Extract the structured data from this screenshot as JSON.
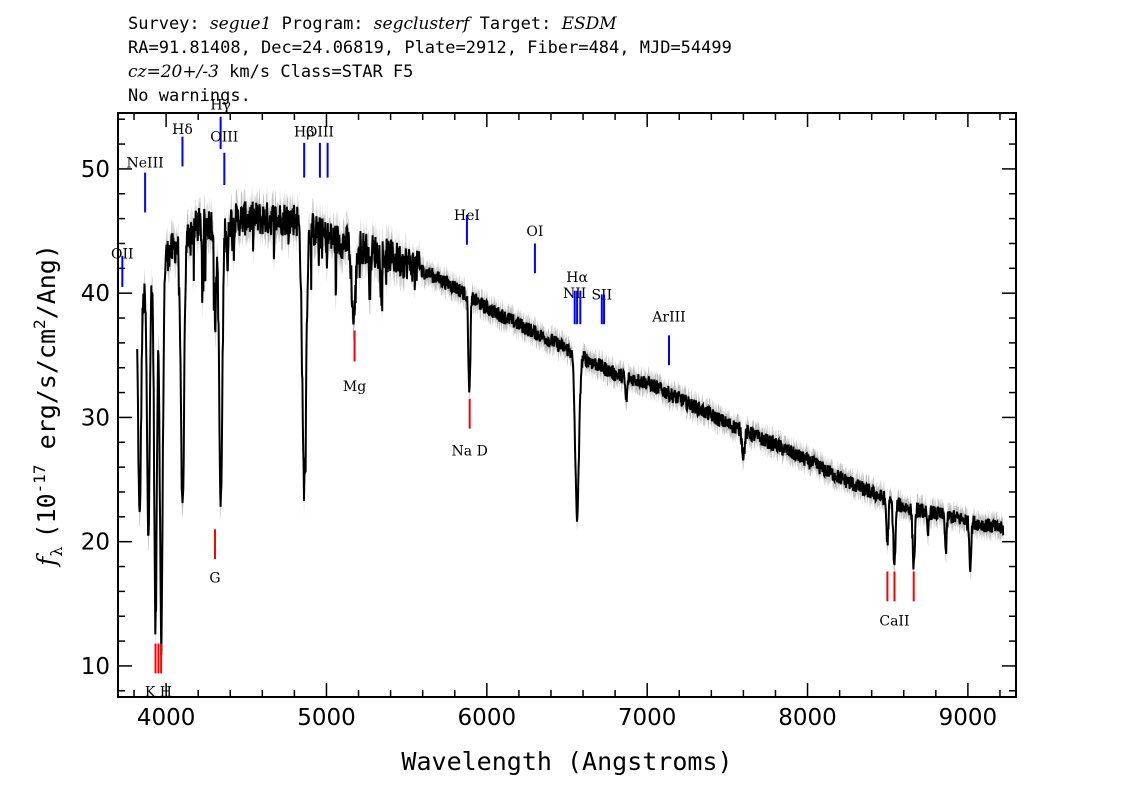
{
  "header": {
    "survey_label": "Survey:",
    "survey": "segue1",
    "program_label": "Program:",
    "program": "segclusterf",
    "target_label": "Target:",
    "target": "ESDM",
    "line2": "RA=91.81408, Dec=24.06819, Plate=2912, Fiber=484, MJD=54499",
    "redshift": "cz=20+/-3",
    "redshift_unit": "km/s",
    "class_text": "Class=STAR F5",
    "warnings": "No warnings."
  },
  "chart_data": {
    "type": "line",
    "xlabel": "Wavelength (Angstroms)",
    "ylabel": "f_λ (10^-17 erg/s/cm^2/Ang)",
    "ylabel_parts": {
      "f": "f",
      "sub": "λ",
      "pre": "(10",
      "exp1": "-17",
      "mid": " erg/s/cm",
      "exp2": "2",
      "post": "/Ang)"
    },
    "xlim": [
      3700,
      9300
    ],
    "ylim": [
      7.5,
      54.5
    ],
    "xticks": [
      4000,
      5000,
      6000,
      7000,
      8000,
      9000
    ],
    "xtick_labels": [
      "4000",
      "5000",
      "6000",
      "7000",
      "8000",
      "9000"
    ],
    "yticks": [
      10,
      20,
      30,
      40,
      50
    ],
    "ytick_labels": [
      "10",
      "20",
      "30",
      "40",
      "50"
    ],
    "colors": {
      "spectrum": "#000000",
      "error_band": "#bdbdbd",
      "emission": "#0000ff",
      "absorption": "#ff0000"
    },
    "continuum": [
      [
        3820,
        38
      ],
      [
        3900,
        41
      ],
      [
        4000,
        43
      ],
      [
        4200,
        45.5
      ],
      [
        4500,
        46
      ],
      [
        4800,
        46
      ],
      [
        5000,
        44.5
      ],
      [
        5200,
        43.8
      ],
      [
        5500,
        42.5
      ],
      [
        5800,
        40.5
      ],
      [
        6000,
        38.8
      ],
      [
        6200,
        37.5
      ],
      [
        6500,
        35.5
      ],
      [
        6800,
        33.5
      ],
      [
        7000,
        32.8
      ],
      [
        7200,
        31.5
      ],
      [
        7500,
        29.5
      ],
      [
        7800,
        27.8
      ],
      [
        8000,
        26.5
      ],
      [
        8300,
        24.5
      ],
      [
        8600,
        22.8
      ],
      [
        8900,
        22
      ],
      [
        9220,
        21
      ]
    ],
    "absorption_features": [
      {
        "x": 3835,
        "depth": 17,
        "width": 8
      },
      {
        "x": 3889,
        "depth": 20,
        "width": 8
      },
      {
        "x": 3934,
        "depth": 29,
        "width": 8
      },
      {
        "x": 3970,
        "depth": 30,
        "width": 9
      },
      {
        "x": 4102,
        "depth": 22,
        "width": 10
      },
      {
        "x": 4227,
        "depth": 4,
        "width": 4
      },
      {
        "x": 4307,
        "depth": 8,
        "width": 6
      },
      {
        "x": 4341,
        "depth": 23,
        "width": 10
      },
      {
        "x": 4384,
        "depth": 4,
        "width": 4
      },
      {
        "x": 4861,
        "depth": 21,
        "width": 12
      },
      {
        "x": 5170,
        "depth": 6,
        "width": 12
      },
      {
        "x": 5270,
        "depth": 3,
        "width": 5
      },
      {
        "x": 5891,
        "depth": 8,
        "width": 6
      },
      {
        "x": 6563,
        "depth": 13,
        "width": 12
      },
      {
        "x": 6870,
        "depth": 2,
        "width": 6
      },
      {
        "x": 7600,
        "depth": 2,
        "width": 8
      },
      {
        "x": 8498,
        "depth": 3.5,
        "width": 6
      },
      {
        "x": 8542,
        "depth": 5,
        "width": 7
      },
      {
        "x": 8662,
        "depth": 4.5,
        "width": 7
      },
      {
        "x": 8750,
        "depth": 2,
        "width": 5
      },
      {
        "x": 8863,
        "depth": 3,
        "width": 5
      },
      {
        "x": 9015,
        "depth": 3.5,
        "width": 6
      }
    ],
    "emission_lines": [
      {
        "label": "OII",
        "wavelength": 3727,
        "label_y": 42.8,
        "top": 40.5,
        "bottom": 43
      },
      {
        "label": "NeIII",
        "wavelength": 3869,
        "label_y": 50.1,
        "top": 46.5,
        "bottom": 49.7
      },
      {
        "label": "Hδ",
        "wavelength": 4102,
        "label_y": 52.8,
        "top": 50.2,
        "bottom": 52.6
      },
      {
        "label": "Hγ",
        "wavelength": 4340,
        "label_y": 54.8,
        "top": 51.6,
        "bottom": 54.2
      },
      {
        "label": "OIII",
        "wavelength": 4363,
        "label_y": 52.2,
        "top": 48.7,
        "bottom": 51.3
      },
      {
        "label": "Hβ",
        "wavelength": 4861,
        "label_y": 52.6,
        "top": 49.3,
        "bottom": 52.1
      },
      {
        "label": "OIII",
        "wavelength": 4959,
        "label_y": 52.6,
        "top": 49.3,
        "bottom": 52.1
      },
      {
        "label": "",
        "wavelength": 5007,
        "label_y": 0,
        "top": 49.3,
        "bottom": 52.1
      },
      {
        "label": "HeI",
        "wavelength": 5876,
        "label_y": 45.9,
        "top": 43.9,
        "bottom": 46.3
      },
      {
        "label": "OI",
        "wavelength": 6300,
        "label_y": 44.6,
        "top": 41.6,
        "bottom": 44
      },
      {
        "label": "Hα",
        "wavelength": 6563,
        "label_y": 40.9,
        "top": 37.5,
        "bottom": 40.2
      },
      {
        "label": "NII",
        "wavelength": 6548,
        "label_y": 39.6,
        "top": 37.5,
        "bottom": 40.2
      },
      {
        "label": "",
        "wavelength": 6583,
        "label_y": 0,
        "top": 37.5,
        "bottom": 40.2
      },
      {
        "label": "SII",
        "wavelength": 6717,
        "label_y": 39.5,
        "top": 37.5,
        "bottom": 39.9
      },
      {
        "label": "",
        "wavelength": 6731,
        "label_y": 0,
        "top": 37.5,
        "bottom": 39.9
      },
      {
        "label": "ArIII",
        "wavelength": 7136,
        "label_y": 37.7,
        "top": 34.2,
        "bottom": 36.6
      }
    ],
    "absorption_lines": [
      {
        "label": "K H",
        "wavelength": 3952,
        "label_y": 8.5,
        "top": 9.4,
        "bottom": 11.8
      },
      {
        "label": "",
        "wavelength": 3934,
        "label_y": 0,
        "top": 9.4,
        "bottom": 11.8
      },
      {
        "label": "",
        "wavelength": 3969,
        "label_y": 0,
        "top": 9.4,
        "bottom": 11.8
      },
      {
        "label": "G",
        "wavelength": 4305,
        "label_y": 17.7,
        "top": 18.6,
        "bottom": 21
      },
      {
        "label": "Mg",
        "wavelength": 5175,
        "label_y": 33.1,
        "top": 34.5,
        "bottom": 37
      },
      {
        "label": "Na D",
        "wavelength": 5893,
        "label_y": 27.9,
        "top": 29.1,
        "bottom": 31.5
      },
      {
        "label": "CaII",
        "wavelength": 8542,
        "label_y": 14.2,
        "top": 15.2,
        "bottom": 17.6
      },
      {
        "label": "",
        "wavelength": 8498,
        "label_y": 0,
        "top": 15.2,
        "bottom": 17.6
      },
      {
        "label": "",
        "wavelength": 8662,
        "label_y": 0,
        "top": 15.2,
        "bottom": 17.6
      }
    ]
  }
}
